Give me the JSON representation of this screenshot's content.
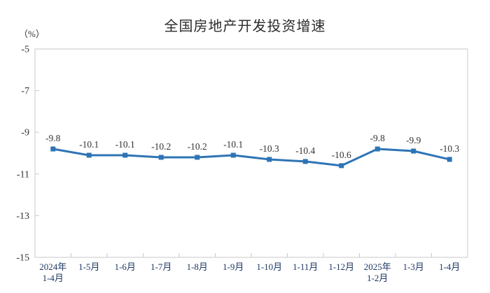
{
  "page": {
    "background": "#ffffff"
  },
  "chart_data": {
    "type": "line",
    "title": "全国房地产开发投资增速",
    "ylabel": "（%）",
    "xlabel": "",
    "categories": [
      "2024年\n1-4月",
      "1-5月",
      "1-6月",
      "1-7月",
      "1-8月",
      "1-9月",
      "1-10月",
      "1-11月",
      "1-12月",
      "2025年\n1-2月",
      "1-3月",
      "1-4月"
    ],
    "values": [
      -9.8,
      -10.1,
      -10.1,
      -10.2,
      -10.2,
      -10.1,
      -10.3,
      -10.4,
      -10.6,
      -9.8,
      -9.9,
      -10.3
    ],
    "data_labels": [
      "-9.8",
      "-10.1",
      "-10.1",
      "-10.2",
      "-10.2",
      "-10.1",
      "-10.3",
      "-10.4",
      "-10.6",
      "-9.8",
      "-9.9",
      "-10.3"
    ],
    "ylim": [
      -15,
      -5
    ],
    "yticks": [
      -5,
      -7,
      -9,
      -11,
      -13,
      -15
    ],
    "grid": false,
    "legend": "none",
    "marker": "square",
    "colors": {
      "line": "#2E74B5",
      "marker": "#2E74B5",
      "axis": "#C9C9C9",
      "title_text": "#2b2b2b",
      "ytick_text": "#333333",
      "xtick_text": "#1F3864",
      "data_label_text": "#333333"
    }
  }
}
